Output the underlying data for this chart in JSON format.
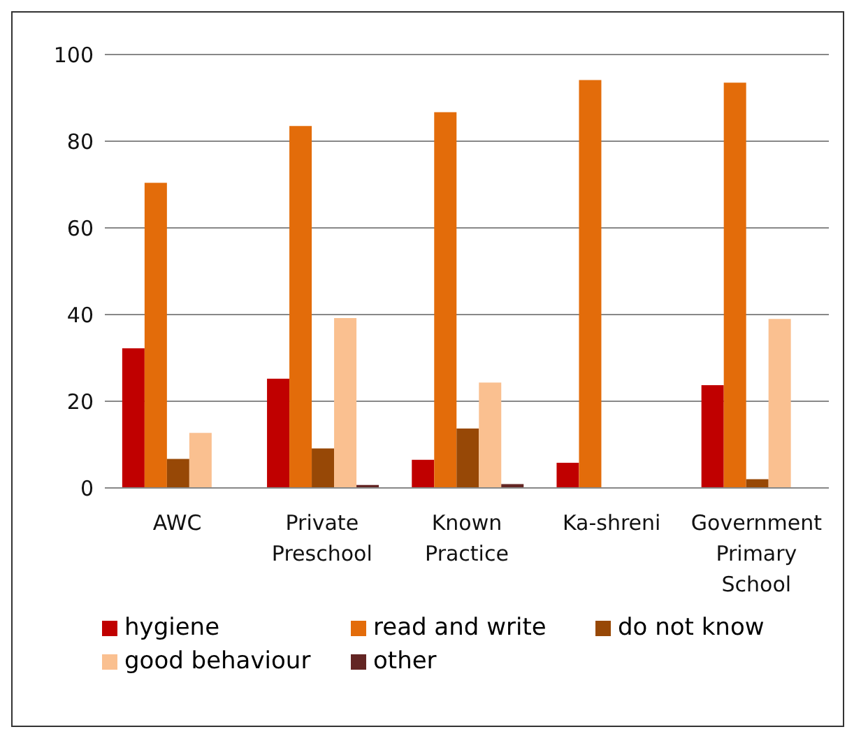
{
  "chart_data": {
    "type": "bar",
    "categories": [
      "AWC",
      "Private Preschool",
      "Known Practice",
      "Ka-shreni",
      "Government Primary School"
    ],
    "series": [
      {
        "name": "hygiene",
        "color": "#c00000",
        "values": [
          32.2,
          25.2,
          6.5,
          5.8,
          23.7
        ]
      },
      {
        "name": "read and write",
        "color": "#e36c0a",
        "values": [
          70.4,
          83.5,
          86.7,
          94.1,
          93.5
        ]
      },
      {
        "name": "do not know",
        "color": "#974806",
        "values": [
          6.7,
          9.1,
          13.7,
          0,
          2.0
        ]
      },
      {
        "name": "good behaviour",
        "color": "#fac090",
        "values": [
          12.7,
          39.2,
          24.3,
          0,
          39.0
        ]
      },
      {
        "name": "other",
        "color": "#632523",
        "values": [
          0,
          0.7,
          0.9,
          0,
          0
        ]
      }
    ],
    "ylim": [
      0,
      100
    ],
    "yticks": [
      0,
      20,
      40,
      60,
      80,
      100
    ],
    "grid": "y",
    "legend": "bottom"
  }
}
